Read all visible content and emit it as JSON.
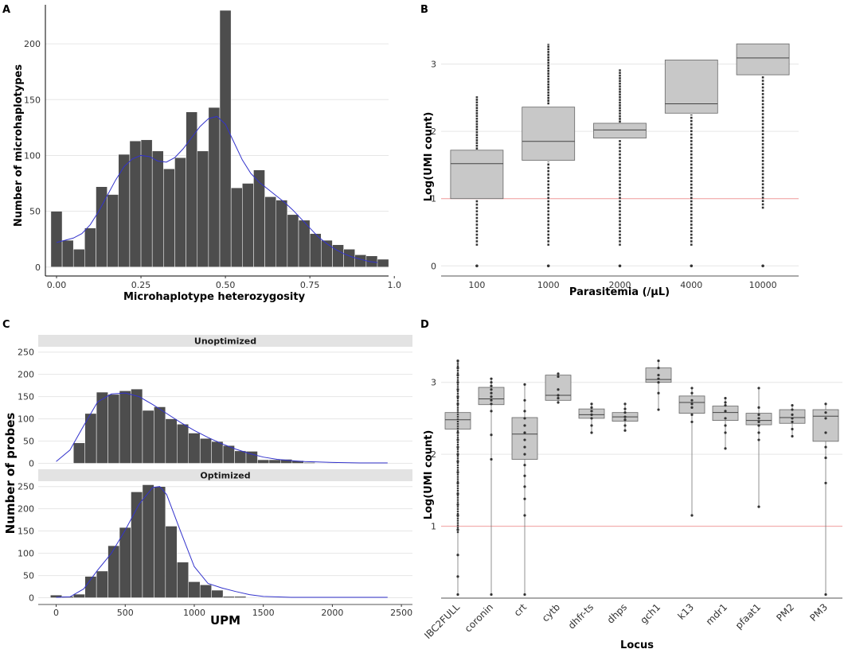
{
  "colors": {
    "bar": "#4d4d4d",
    "curve": "#3333cc",
    "box": "#c8c8c8",
    "grid": "#e6e6e6",
    "refline": "#f4a0a0",
    "strip": "#e3e3e3"
  },
  "panels": {
    "A": "A",
    "B": "B",
    "C": "C",
    "D": "D"
  },
  "chart_data": [
    {
      "panel": "A",
      "type": "bar",
      "xlabel": "Microhaplotype heterozygosity",
      "ylabel": "Number of microhaplotypes",
      "xlim": [
        -0.033,
        0.983
      ],
      "ylim": [
        -8,
        235
      ],
      "xticks": [
        0.0,
        0.25,
        0.5,
        0.75,
        1.0
      ],
      "xtick_labels": [
        "0.00",
        "0.25",
        "0.50",
        "0.75",
        "1.0"
      ],
      "yticks": [
        0,
        50,
        100,
        150,
        200
      ],
      "bin_width": 0.0333,
      "bin_starts": [
        -0.0167,
        0.0167,
        0.05,
        0.0833,
        0.1167,
        0.15,
        0.1833,
        0.2167,
        0.25,
        0.2833,
        0.3167,
        0.35,
        0.3833,
        0.4167,
        0.45,
        0.4833,
        0.5167,
        0.55,
        0.5833,
        0.6167,
        0.65,
        0.6833,
        0.7167,
        0.75,
        0.7833,
        0.8167,
        0.85,
        0.8833,
        0.9167,
        0.95
      ],
      "values": [
        50,
        24,
        16,
        35,
        72,
        65,
        101,
        113,
        114,
        104,
        88,
        98,
        139,
        104,
        143,
        230,
        71,
        75,
        87,
        63,
        60,
        47,
        42,
        30,
        24,
        20,
        16,
        11,
        10,
        7
      ],
      "density_curve": {
        "x": [
          0.0,
          0.025,
          0.05,
          0.075,
          0.1,
          0.125,
          0.15,
          0.175,
          0.2,
          0.225,
          0.25,
          0.275,
          0.3,
          0.325,
          0.35,
          0.375,
          0.4,
          0.425,
          0.45,
          0.475,
          0.5,
          0.525,
          0.55,
          0.575,
          0.6,
          0.625,
          0.65,
          0.675,
          0.7,
          0.725,
          0.75,
          0.775,
          0.8,
          0.825,
          0.85,
          0.875,
          0.9,
          0.925,
          0.95
        ],
        "y": [
          22,
          24,
          26,
          30,
          38,
          50,
          64,
          78,
          90,
          97,
          100,
          99,
          95,
          94,
          98,
          106,
          116,
          126,
          133,
          135,
          128,
          112,
          96,
          84,
          76,
          70,
          64,
          58,
          51,
          43,
          35,
          27,
          21,
          16,
          12,
          9,
          7,
          5,
          4
        ]
      }
    },
    {
      "panel": "B",
      "type": "box",
      "xlabel": "Parasitemia (/µL)",
      "ylabel": "Log(UMI count)",
      "categories": [
        "100",
        "1000",
        "2000",
        "4000",
        "10000"
      ],
      "ylim": [
        -0.15,
        3.55
      ],
      "yticks": [
        0,
        1,
        2,
        3
      ],
      "reference_line": 1,
      "boxes": [
        {
          "q1": 1.0,
          "median": 1.52,
          "q3": 1.72
        },
        {
          "q1": 1.57,
          "median": 1.85,
          "q3": 2.36
        },
        {
          "q1": 1.9,
          "median": 2.02,
          "q3": 2.12
        },
        {
          "q1": 2.27,
          "median": 2.41,
          "q3": 3.06
        },
        {
          "q1": 2.84,
          "median": 3.09,
          "q3": 3.3
        }
      ],
      "outlier_ranges": [
        {
          "hi": [
            1.73,
            2.52
          ],
          "lo": [
            0.3,
            0.99
          ],
          "isolated": [
            0
          ]
        },
        {
          "hi": [
            2.4,
            3.3
          ],
          "lo": [
            0.3,
            1.55
          ],
          "isolated": [
            0
          ]
        },
        {
          "hi": [
            2.13,
            2.92
          ],
          "lo": [
            0.3,
            1.88
          ],
          "isolated": [
            0
          ]
        },
        {
          "hi": [],
          "lo": [
            0.3,
            2.25
          ],
          "isolated": [
            0
          ]
        },
        {
          "hi": [],
          "lo": [
            0.85,
            2.82
          ],
          "isolated": [
            0
          ]
        }
      ]
    },
    {
      "panel": "C",
      "type": "bar",
      "xlabel": "UPM",
      "ylabel": "Number of probes",
      "facets": [
        "Unoptimized",
        "Optimized"
      ],
      "xlim": [
        -130,
        2580
      ],
      "ylim": [
        -8,
        262
      ],
      "xticks": [
        0,
        500,
        1000,
        1500,
        2000,
        2500
      ],
      "yticks": [
        0,
        50,
        100,
        150,
        200,
        250
      ],
      "bin_width": 83.3,
      "bin_starts": [
        -41.7,
        41.7,
        125,
        208.3,
        291.7,
        375,
        458.3,
        541.7,
        625,
        708.3,
        791.7,
        875,
        958.3,
        1041.7,
        1125,
        1208.3,
        1291.7,
        1375,
        1458.3,
        1541.7,
        1625,
        1708.3,
        1791.7,
        1875,
        1958.3,
        2041.7,
        2125,
        2208.3,
        2291.7,
        2375
      ],
      "series": [
        {
          "name": "Unoptimized",
          "values": [
            0,
            0,
            46,
            112,
            160,
            155,
            163,
            167,
            119,
            127,
            100,
            88,
            68,
            56,
            49,
            40,
            28,
            27,
            8,
            8,
            9,
            6,
            2,
            1,
            0,
            1,
            0,
            0,
            0,
            0
          ],
          "density_curve": {
            "x": [
              0,
              100,
              200,
              300,
              400,
              500,
              600,
              700,
              800,
              900,
              1000,
              1100,
              1200,
              1300,
              1400,
              1500,
              1600,
              1700,
              1800,
              2000,
              2200,
              2400
            ],
            "y": [
              4,
              30,
              85,
              138,
              156,
              158,
              150,
              132,
              112,
              92,
              74,
              58,
              44,
              32,
              22,
              14,
              9,
              6,
              4,
              2,
              1,
              1
            ]
          }
        },
        {
          "name": "Optimized",
          "values": [
            6,
            3,
            8,
            48,
            60,
            117,
            158,
            238,
            254,
            250,
            161,
            80,
            36,
            29,
            17,
            3,
            3,
            1,
            0,
            0,
            0,
            0,
            0,
            0,
            0,
            0,
            0,
            0,
            0,
            0
          ],
          "density_curve": {
            "x": [
              0,
              100,
              200,
              300,
              400,
              500,
              600,
              700,
              750,
              800,
              900,
              1000,
              1100,
              1200,
              1300,
              1400,
              1500,
              1700,
              2000,
              2400
            ],
            "y": [
              1,
              2,
              20,
              62,
              100,
              152,
              210,
              248,
              250,
              232,
              150,
              70,
              32,
              22,
              14,
              7,
              3,
              1,
              1,
              1
            ]
          }
        }
      ]
    },
    {
      "panel": "D",
      "type": "box",
      "xlabel": "Locus",
      "ylabel": "Log(UMI count)",
      "categories": [
        "IBC2FULL",
        "coronin",
        "crt",
        "cytb",
        "dhfr-ts",
        "dhps",
        "gch1",
        "k13",
        "mdr1",
        "pfaat1",
        "PM2",
        "PM3"
      ],
      "ylim": [
        0.0,
        3.45
      ],
      "yticks": [
        1,
        2,
        3
      ],
      "reference_line": 1,
      "boxes": [
        {
          "q1": 2.35,
          "median": 2.48,
          "q3": 2.58
        },
        {
          "q1": 2.69,
          "median": 2.77,
          "q3": 2.93
        },
        {
          "q1": 1.93,
          "median": 2.28,
          "q3": 2.51
        },
        {
          "q1": 2.75,
          "median": 2.82,
          "q3": 3.1
        },
        {
          "q1": 2.5,
          "median": 2.55,
          "q3": 2.63
        },
        {
          "q1": 2.46,
          "median": 2.52,
          "q3": 2.58
        },
        {
          "q1": 3.0,
          "median": 3.04,
          "q3": 3.2
        },
        {
          "q1": 2.57,
          "median": 2.72,
          "q3": 2.81
        },
        {
          "q1": 2.47,
          "median": 2.58,
          "q3": 2.67
        },
        {
          "q1": 2.41,
          "median": 2.47,
          "q3": 2.57
        },
        {
          "q1": 2.43,
          "median": 2.51,
          "q3": 2.62
        },
        {
          "q1": 2.18,
          "median": 2.53,
          "q3": 2.62
        }
      ],
      "points": [
        [
          0.05,
          0.3,
          0.6,
          0.95,
          1.15,
          1.3,
          1.45,
          1.6,
          1.75,
          1.9,
          2.0,
          2.1,
          2.2,
          2.3,
          2.7,
          2.8,
          2.9,
          3.0,
          3.1,
          3.2,
          3.3
        ],
        [
          0.05,
          1.93,
          2.27,
          2.6,
          2.7,
          2.75,
          2.8,
          2.85,
          2.9,
          2.95,
          3.0,
          3.05
        ],
        [
          0.05,
          1.15,
          1.38,
          1.55,
          1.7,
          1.85,
          2.0,
          2.1,
          2.2,
          2.3,
          2.4,
          2.5,
          2.6,
          2.75,
          2.97
        ],
        [
          2.72,
          2.78,
          2.82,
          2.9,
          3.08,
          3.12
        ],
        [
          2.3,
          2.4,
          2.5,
          2.55,
          2.6,
          2.65,
          2.7
        ],
        [
          2.33,
          2.4,
          2.48,
          2.52,
          2.58,
          2.63,
          2.7
        ],
        [
          2.62,
          2.85,
          3.0,
          3.05,
          3.1,
          3.2,
          3.3
        ],
        [
          1.15,
          2.45,
          2.55,
          2.65,
          2.7,
          2.75,
          2.85,
          2.92
        ],
        [
          2.08,
          2.3,
          2.4,
          2.5,
          2.6,
          2.68,
          2.72,
          2.78
        ],
        [
          1.27,
          2.2,
          2.3,
          2.4,
          2.45,
          2.5,
          2.55,
          2.65,
          2.92
        ],
        [
          2.25,
          2.35,
          2.45,
          2.5,
          2.55,
          2.62,
          2.68
        ],
        [
          0.05,
          1.6,
          1.95,
          2.1,
          2.3,
          2.5,
          2.58,
          2.7
        ]
      ]
    }
  ]
}
